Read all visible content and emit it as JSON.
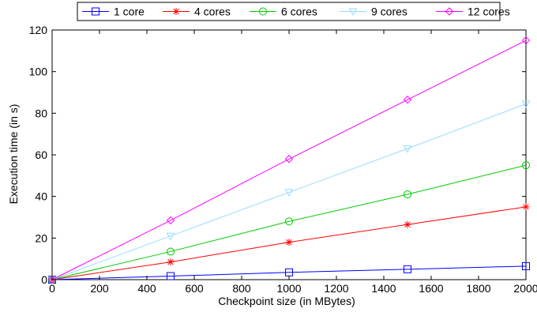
{
  "chart_data": {
    "type": "line",
    "title": "",
    "xlabel": "Checkpoint size (in MBytes)",
    "ylabel": "Execution time (in s)",
    "xlim": [
      0,
      2000
    ],
    "ylim": [
      0,
      120
    ],
    "xticks": [
      0,
      200,
      400,
      600,
      800,
      1000,
      1200,
      1400,
      1600,
      1800,
      2000
    ],
    "yticks": [
      0,
      20,
      40,
      60,
      80,
      100,
      120
    ],
    "grid": false,
    "legend_placement": "top",
    "x": [
      0,
      500,
      1000,
      1500,
      2000
    ],
    "series": [
      {
        "name": "1 core",
        "values": [
          0,
          1.7,
          3.5,
          5.0,
          6.5
        ],
        "color": "#0000ff",
        "marker": "square"
      },
      {
        "name": "4 cores",
        "values": [
          0,
          8.5,
          18,
          26.5,
          35
        ],
        "color": "#ff0000",
        "marker": "asterisk"
      },
      {
        "name": "6 cores",
        "values": [
          0,
          13.5,
          28,
          41,
          55
        ],
        "color": "#00cc00",
        "marker": "circle"
      },
      {
        "name": "9 cores",
        "values": [
          0,
          21,
          42,
          63,
          84.5
        ],
        "color": "#99ddff",
        "marker": "triangle-down"
      },
      {
        "name": "12 cores",
        "values": [
          0,
          28.5,
          58,
          86.5,
          115
        ],
        "color": "#ff00ff",
        "marker": "diamond"
      }
    ]
  }
}
